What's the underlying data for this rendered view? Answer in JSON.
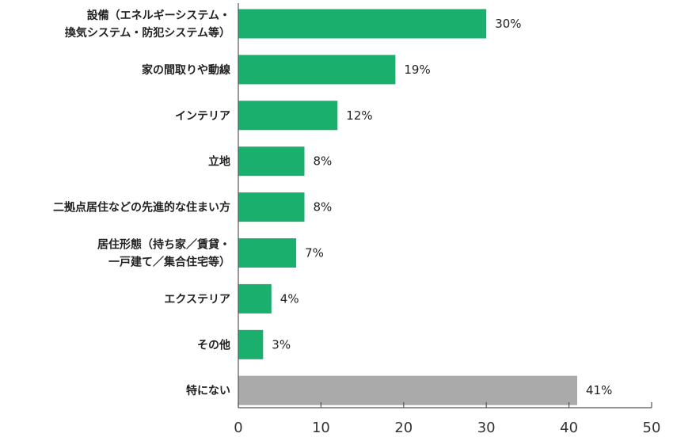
{
  "chart_data": {
    "type": "bar",
    "orientation": "horizontal",
    "categories": [
      [
        "設備（エネルギーシステム・",
        "換気システム・防犯システム等）"
      ],
      [
        "家の間取りや動線"
      ],
      [
        "インテリア"
      ],
      [
        "立地"
      ],
      [
        "二拠点居住などの先進的な住まい方"
      ],
      [
        "居住形態（持ち家／賃貸・",
        "一戸建て／集合住宅等）"
      ],
      [
        "エクステリア"
      ],
      [
        "その他"
      ],
      [
        "特にない"
      ]
    ],
    "values": [
      30,
      19,
      12,
      8,
      8,
      7,
      4,
      3,
      41
    ],
    "value_labels": [
      "30%",
      "19%",
      "12%",
      "8%",
      "8%",
      "7%",
      "4%",
      "3%",
      "41%"
    ],
    "bar_colors": [
      "#1aaf6c",
      "#1aaf6c",
      "#1aaf6c",
      "#1aaf6c",
      "#1aaf6c",
      "#1aaf6c",
      "#1aaf6c",
      "#1aaf6c",
      "#aaaaaa"
    ],
    "xlim": [
      0,
      50
    ],
    "xticks": [
      0,
      10,
      20,
      30,
      40,
      50
    ],
    "xtick_labels": [
      "0",
      "10",
      "20",
      "30",
      "40",
      "50"
    ],
    "grid": false,
    "legend": "none"
  }
}
